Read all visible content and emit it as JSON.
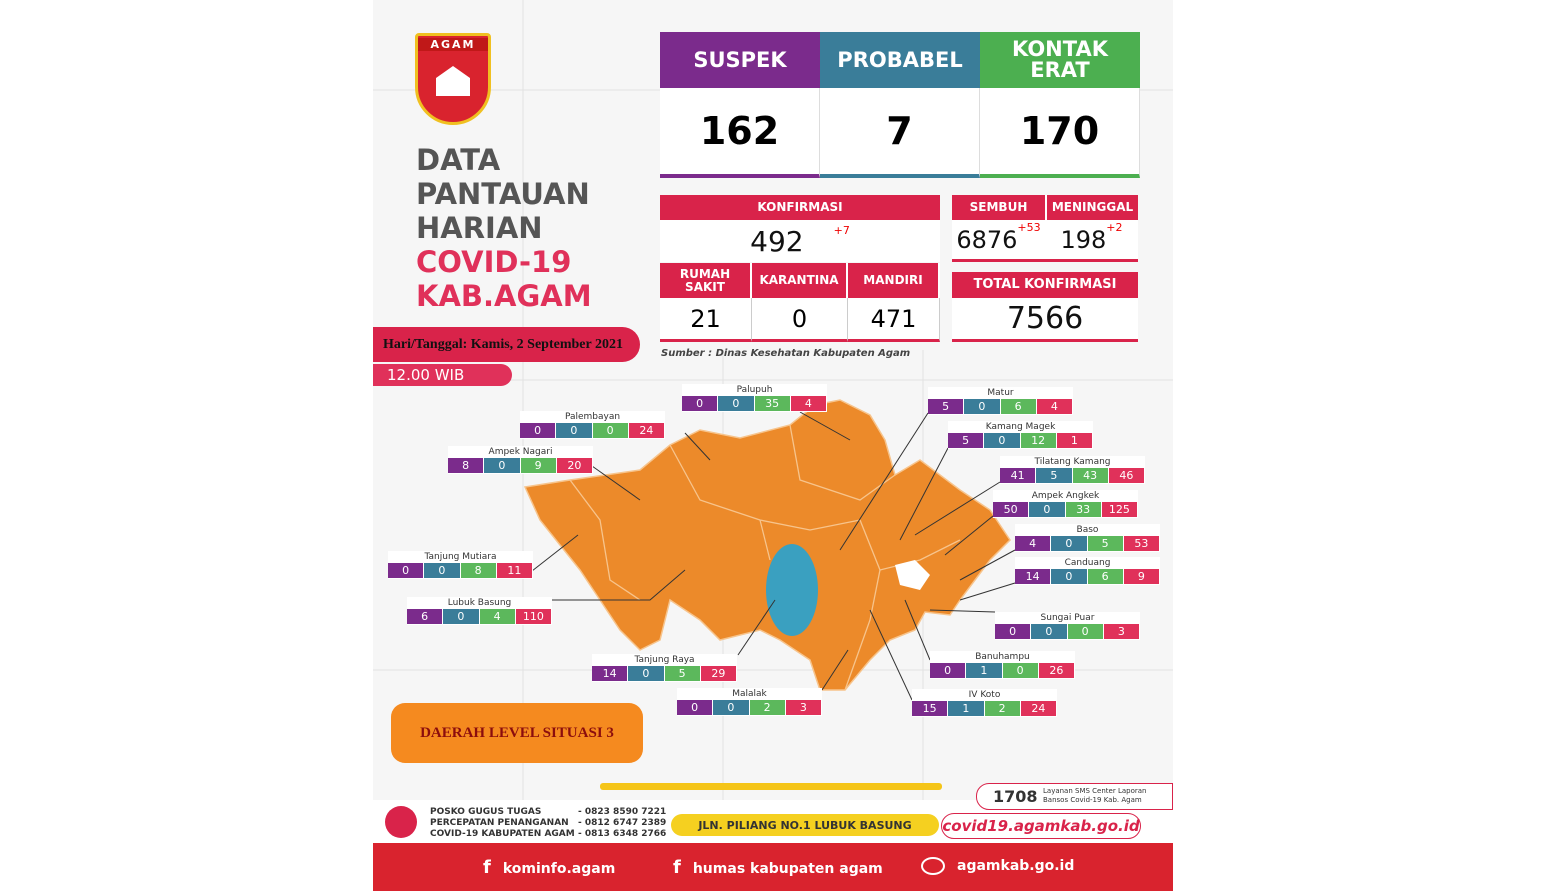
{
  "header": {
    "logo": "AGAM",
    "title": [
      "DATA",
      "PANTAUAN",
      "HARIAN"
    ],
    "subtitle": [
      "COVID-19",
      "KAB.AGAM"
    ],
    "date": "Hari/Tanggal: Kamis, 2 September 2021",
    "time": "12.00 WIB"
  },
  "top_stats": [
    {
      "label": "SUSPEK",
      "value": 162
    },
    {
      "label": "PROBABEL",
      "value": 7
    },
    {
      "label": "KONTAK ERAT",
      "value": 170
    }
  ],
  "konfirmasi": {
    "label": "KONFIRMASI",
    "value": 492,
    "delta": "+7"
  },
  "sembuh": {
    "label": "SEMBUH",
    "value": 6876,
    "delta": "+53"
  },
  "meninggal": {
    "label": "MENINGGAL",
    "value": 198,
    "delta": "+2"
  },
  "status": [
    {
      "label": "RUMAH SAKIT",
      "value": 21
    },
    {
      "label": "KARANTINA",
      "value": 0
    },
    {
      "label": "MANDIRI",
      "value": 471
    }
  ],
  "total_konfirmasi": {
    "label": "TOTAL KONFIRMASI",
    "value": 7566
  },
  "source": "Sumber : Dinas Kesehatan Kabupaten Agam",
  "districts": [
    {
      "name": "Palupuh",
      "values": [
        0,
        0,
        35,
        4
      ]
    },
    {
      "name": "Palembayan",
      "values": [
        0,
        0,
        0,
        24
      ]
    },
    {
      "name": "Ampek Nagari",
      "values": [
        8,
        0,
        9,
        20
      ]
    },
    {
      "name": "Tanjung Mutiara",
      "values": [
        0,
        0,
        8,
        11
      ]
    },
    {
      "name": "Lubuk Basung",
      "values": [
        6,
        0,
        4,
        110
      ]
    },
    {
      "name": "Tanjung Raya",
      "values": [
        14,
        0,
        5,
        29
      ]
    },
    {
      "name": "Malalak",
      "values": [
        0,
        0,
        2,
        3
      ]
    },
    {
      "name": "Matur",
      "values": [
        5,
        0,
        6,
        4
      ]
    },
    {
      "name": "Kamang Magek",
      "values": [
        5,
        0,
        12,
        1
      ]
    },
    {
      "name": "Tilatang Kamang",
      "values": [
        41,
        5,
        43,
        46
      ]
    },
    {
      "name": "Ampek Angkek",
      "values": [
        50,
        0,
        33,
        125
      ]
    },
    {
      "name": "Baso",
      "values": [
        4,
        0,
        5,
        53
      ]
    },
    {
      "name": "Canduang",
      "values": [
        14,
        0,
        6,
        9
      ]
    },
    {
      "name": "Sungai Puar",
      "values": [
        0,
        0,
        0,
        3
      ]
    },
    {
      "name": "Banuhampu",
      "values": [
        0,
        1,
        0,
        26
      ]
    },
    {
      "name": "IV Koto",
      "values": [
        15,
        1,
        2,
        24
      ]
    }
  ],
  "level": "DAERAH LEVEL SITUASI 3",
  "footer": {
    "contacts": [
      {
        "label": "POSKO GUGUS TUGAS",
        "phone": "- 0823 8590 7221"
      },
      {
        "label": "PERCEPATAN PENANGANAN",
        "phone": "- 0812 6747 2389"
      },
      {
        "label": "COVID-19 KABUPATEN AGAM",
        "phone": "- 0813 6348 2766"
      }
    ],
    "sms_number": "1708",
    "sms_text": "Layanan SMS Center Laporan Bansos Covid-19 Kab. Agam",
    "address": "JLN. PILIANG NO.1 LUBUK BASUNG",
    "website": "covid19.agamkab.go.id",
    "socials": [
      "kominfo.agam",
      "humas kabupaten agam",
      "agamkab.go.id"
    ]
  }
}
